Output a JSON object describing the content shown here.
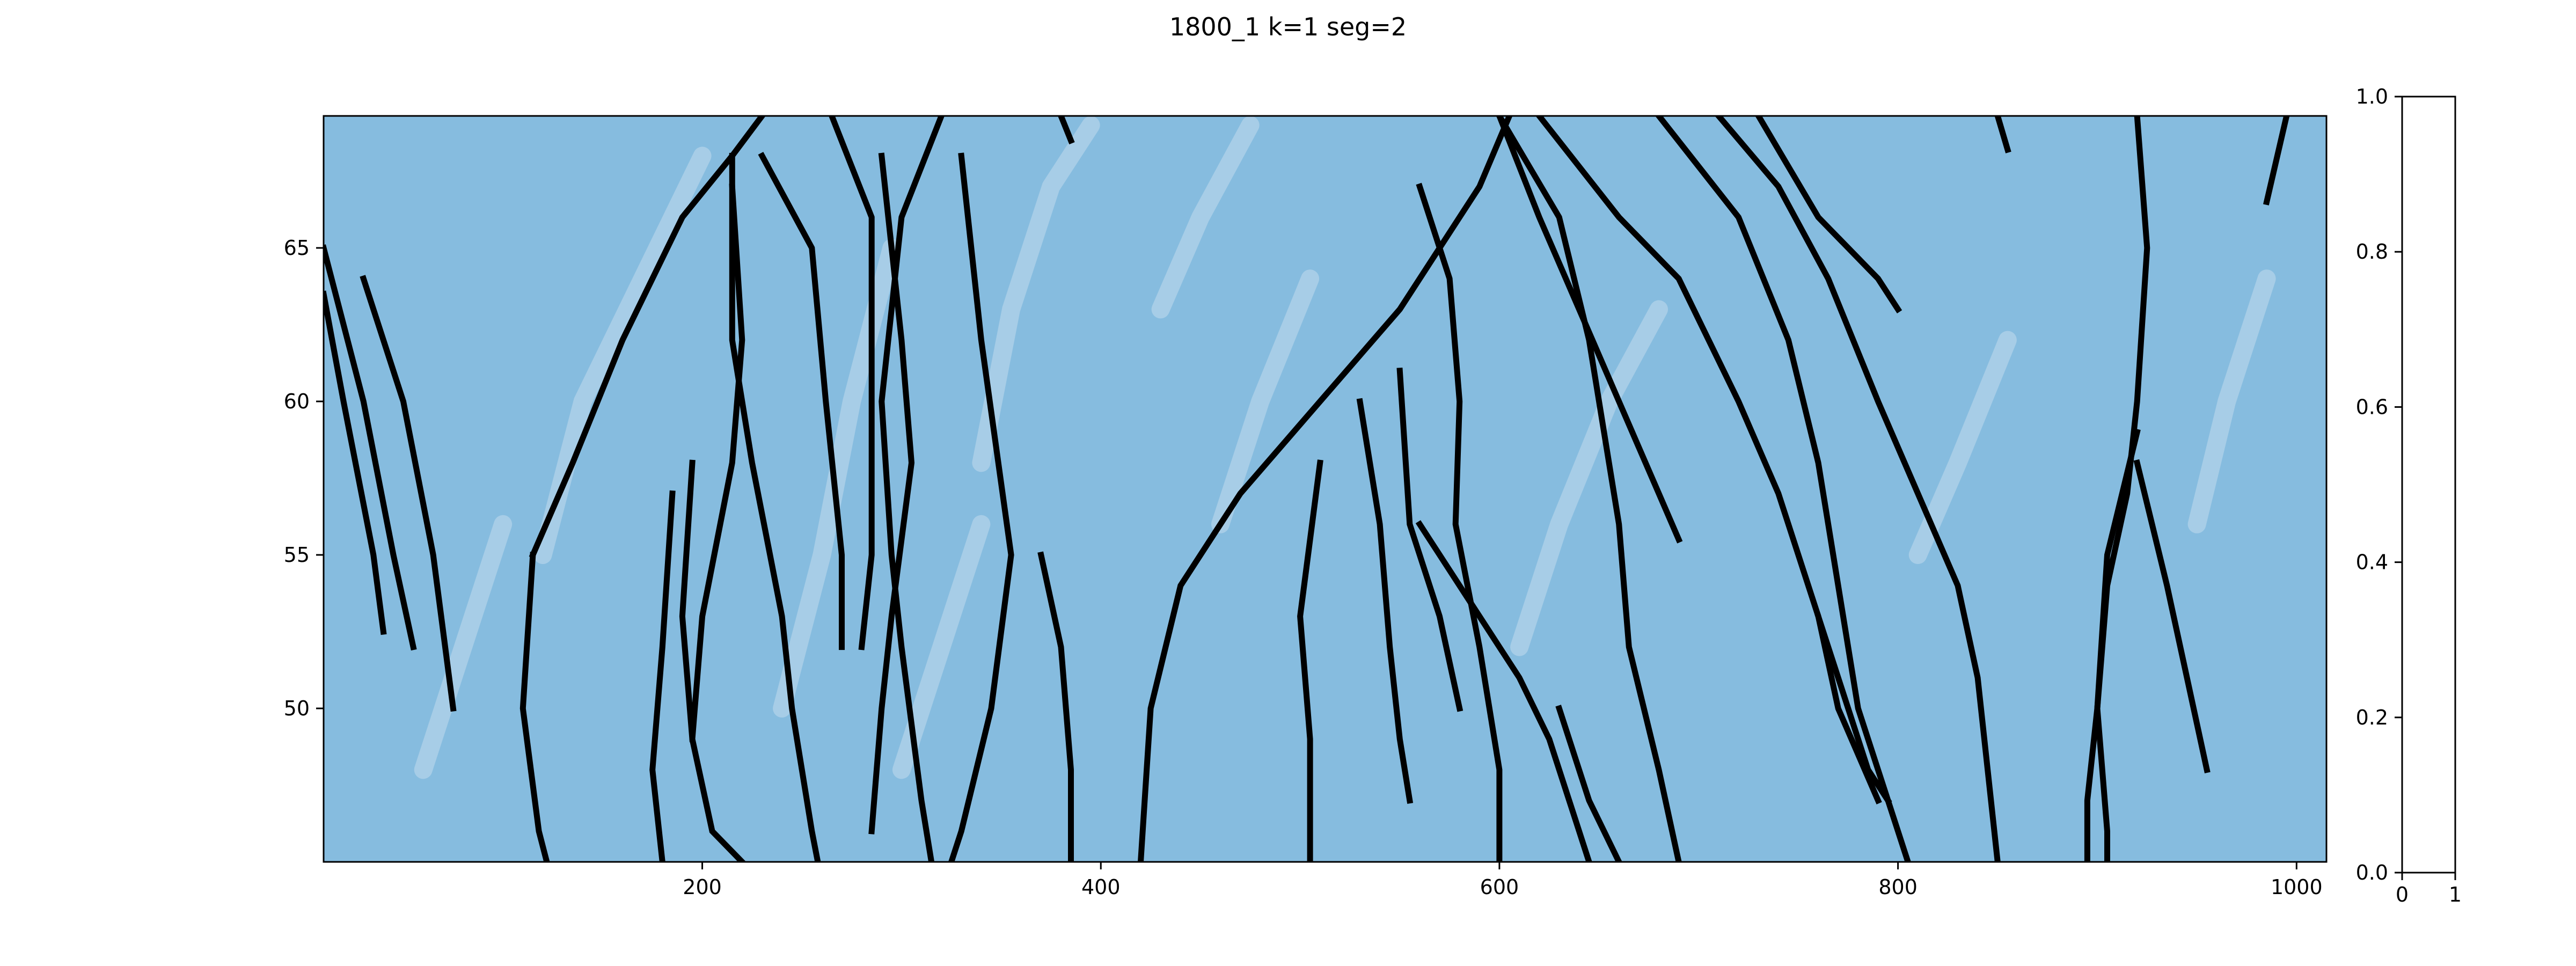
{
  "chart_data": {
    "type": "heatmap",
    "title": "1800_1 k=1   seg=2",
    "xlabel": "",
    "ylabel": "",
    "xlim": [
      10,
      1015
    ],
    "ylim": [
      45,
      69.3
    ],
    "x_ticks": [
      200,
      400,
      600,
      800,
      1000
    ],
    "y_ticks": [
      50,
      55,
      60,
      65
    ],
    "grid": false,
    "colormap": "Blues",
    "base_color": "#86bcdf",
    "light_color": "#b2d3ea",
    "line_color": "#000000",
    "colorbar": {
      "ylim": [
        0.0,
        1.0
      ],
      "xlim": [
        0,
        1
      ],
      "y_ticks": [
        0.0,
        0.2,
        0.4,
        0.6,
        0.8,
        1.0
      ],
      "x_ticks": [
        0,
        1
      ]
    },
    "lines": [
      [
        [
          10,
          65
        ],
        [
          30,
          60
        ],
        [
          45,
          55
        ],
        [
          55,
          52
        ]
      ],
      [
        [
          10,
          63.5
        ],
        [
          20,
          60
        ],
        [
          35,
          55
        ],
        [
          40,
          52.5
        ]
      ],
      [
        [
          30,
          64
        ],
        [
          50,
          60
        ],
        [
          65,
          55
        ],
        [
          75,
          50
        ]
      ],
      [
        [
          115,
          55
        ],
        [
          135,
          58
        ],
        [
          160,
          62
        ],
        [
          190,
          66
        ],
        [
          215,
          68
        ],
        [
          230,
          69.3
        ]
      ],
      [
        [
          115,
          55
        ],
        [
          110,
          50
        ],
        [
          118,
          46
        ],
        [
          122,
          45
        ]
      ],
      [
        [
          185,
          57
        ],
        [
          180,
          52
        ],
        [
          175,
          48
        ],
        [
          180,
          45
        ]
      ],
      [
        [
          195,
          58
        ],
        [
          190,
          53
        ],
        [
          195,
          49
        ]
      ],
      [
        [
          215,
          67
        ],
        [
          220,
          62
        ],
        [
          215,
          58
        ],
        [
          200,
          53
        ],
        [
          195,
          49
        ],
        [
          205,
          46
        ],
        [
          220,
          45
        ]
      ],
      [
        [
          215,
          68
        ],
        [
          215,
          62
        ],
        [
          225,
          58
        ],
        [
          240,
          53
        ],
        [
          245,
          50
        ],
        [
          255,
          46
        ],
        [
          258,
          45
        ]
      ],
      [
        [
          230,
          68
        ],
        [
          255,
          65
        ],
        [
          262,
          60
        ],
        [
          270,
          55
        ],
        [
          270,
          52
        ]
      ],
      [
        [
          265,
          69.3
        ],
        [
          285,
          66
        ],
        [
          285,
          60
        ],
        [
          285,
          55
        ],
        [
          280,
          52
        ]
      ],
      [
        [
          290,
          68
        ],
        [
          300,
          62
        ],
        [
          305,
          58
        ],
        [
          295,
          53
        ],
        [
          290,
          50
        ],
        [
          285,
          46
        ]
      ],
      [
        [
          320,
          69.3
        ],
        [
          300,
          66
        ],
        [
          290,
          60
        ],
        [
          295,
          55
        ],
        [
          300,
          52
        ],
        [
          310,
          47
        ],
        [
          315,
          45
        ]
      ],
      [
        [
          330,
          68
        ],
        [
          340,
          62
        ],
        [
          355,
          55
        ],
        [
          345,
          50
        ],
        [
          330,
          46
        ],
        [
          325,
          45
        ]
      ],
      [
        [
          370,
          55
        ],
        [
          380,
          52
        ],
        [
          385,
          48
        ],
        [
          385,
          45
        ]
      ],
      [
        [
          380,
          69.3
        ],
        [
          385,
          68.5
        ]
      ],
      [
        [
          420,
          45
        ],
        [
          425,
          50
        ],
        [
          440,
          54
        ],
        [
          470,
          57
        ],
        [
          510,
          60
        ],
        [
          550,
          63
        ],
        [
          590,
          67
        ],
        [
          605,
          69.3
        ]
      ],
      [
        [
          510,
          58
        ],
        [
          500,
          53
        ],
        [
          505,
          49
        ],
        [
          505,
          45
        ]
      ],
      [
        [
          530,
          60
        ],
        [
          540,
          56
        ],
        [
          545,
          52
        ],
        [
          550,
          49
        ],
        [
          555,
          47
        ]
      ],
      [
        [
          550,
          61
        ],
        [
          555,
          56
        ],
        [
          570,
          53
        ],
        [
          580,
          50
        ]
      ],
      [
        [
          560,
          67
        ],
        [
          575,
          64
        ],
        [
          580,
          60
        ],
        [
          578,
          56
        ],
        [
          590,
          52
        ],
        [
          600,
          48
        ],
        [
          600,
          45
        ]
      ],
      [
        [
          600,
          69.3
        ],
        [
          620,
          66
        ],
        [
          640,
          63
        ],
        [
          660,
          60
        ],
        [
          680,
          57
        ],
        [
          690,
          55.5
        ]
      ],
      [
        [
          600,
          69.3
        ],
        [
          630,
          66
        ],
        [
          645,
          62
        ],
        [
          660,
          56
        ],
        [
          665,
          52
        ],
        [
          680,
          48
        ],
        [
          690,
          45
        ]
      ],
      [
        [
          620,
          69.3
        ],
        [
          660,
          66
        ],
        [
          690,
          64
        ],
        [
          720,
          60
        ],
        [
          740,
          57
        ],
        [
          760,
          53
        ],
        [
          770,
          50
        ],
        [
          790,
          47
        ]
      ],
      [
        [
          680,
          69.3
        ],
        [
          720,
          66
        ],
        [
          745,
          62
        ],
        [
          760,
          58
        ],
        [
          770,
          54
        ],
        [
          780,
          50
        ],
        [
          805,
          45
        ]
      ],
      [
        [
          710,
          69.3
        ],
        [
          740,
          67
        ],
        [
          765,
          64
        ],
        [
          790,
          60
        ],
        [
          810,
          57
        ],
        [
          830,
          54
        ],
        [
          840,
          51
        ],
        [
          845,
          48
        ],
        [
          850,
          45
        ]
      ],
      [
        [
          730,
          69.3
        ],
        [
          760,
          66
        ],
        [
          790,
          64
        ],
        [
          800,
          63
        ]
      ],
      [
        [
          760,
          53
        ],
        [
          770,
          51
        ],
        [
          785,
          48
        ],
        [
          795,
          47
        ]
      ],
      [
        [
          630,
          50
        ],
        [
          645,
          47
        ],
        [
          660,
          45
        ]
      ],
      [
        [
          560,
          56
        ],
        [
          590,
          53
        ],
        [
          610,
          51
        ],
        [
          625,
          49
        ],
        [
          640,
          46
        ],
        [
          645,
          45
        ]
      ],
      [
        [
          850,
          69.3
        ],
        [
          855,
          68.2
        ]
      ],
      [
        [
          920,
          69.3
        ],
        [
          925,
          65
        ],
        [
          920,
          60
        ],
        [
          915,
          57
        ],
        [
          905,
          54
        ],
        [
          900,
          50
        ],
        [
          905,
          46
        ],
        [
          905,
          45
        ]
      ],
      [
        [
          995,
          69.3
        ],
        [
          985,
          66.5
        ]
      ],
      [
        [
          920,
          58
        ],
        [
          935,
          54
        ],
        [
          945,
          51
        ],
        [
          955,
          48
        ]
      ],
      [
        [
          920,
          59
        ],
        [
          905,
          55
        ],
        [
          900,
          50
        ],
        [
          895,
          47
        ],
        [
          895,
          45
        ]
      ]
    ],
    "pale_streaks": [
      [
        [
          120,
          55
        ],
        [
          140,
          60
        ],
        [
          170,
          64
        ],
        [
          200,
          68
        ]
      ],
      [
        [
          340,
          58
        ],
        [
          355,
          63
        ],
        [
          375,
          67
        ],
        [
          395,
          69
        ]
      ],
      [
        [
          240,
          50
        ],
        [
          260,
          55
        ],
        [
          275,
          60
        ],
        [
          295,
          65
        ]
      ],
      [
        [
          60,
          48
        ],
        [
          80,
          52
        ],
        [
          100,
          56
        ]
      ],
      [
        [
          460,
          56
        ],
        [
          480,
          60
        ],
        [
          505,
          64
        ]
      ],
      [
        [
          610,
          52
        ],
        [
          630,
          56
        ],
        [
          655,
          60
        ],
        [
          680,
          63
        ]
      ],
      [
        [
          810,
          55
        ],
        [
          830,
          58
        ],
        [
          855,
          62
        ]
      ],
      [
        [
          950,
          56
        ],
        [
          965,
          60
        ],
        [
          985,
          64
        ]
      ],
      [
        [
          300,
          48
        ],
        [
          320,
          52
        ],
        [
          340,
          56
        ]
      ],
      [
        [
          430,
          63
        ],
        [
          450,
          66
        ],
        [
          475,
          69
        ]
      ]
    ]
  }
}
